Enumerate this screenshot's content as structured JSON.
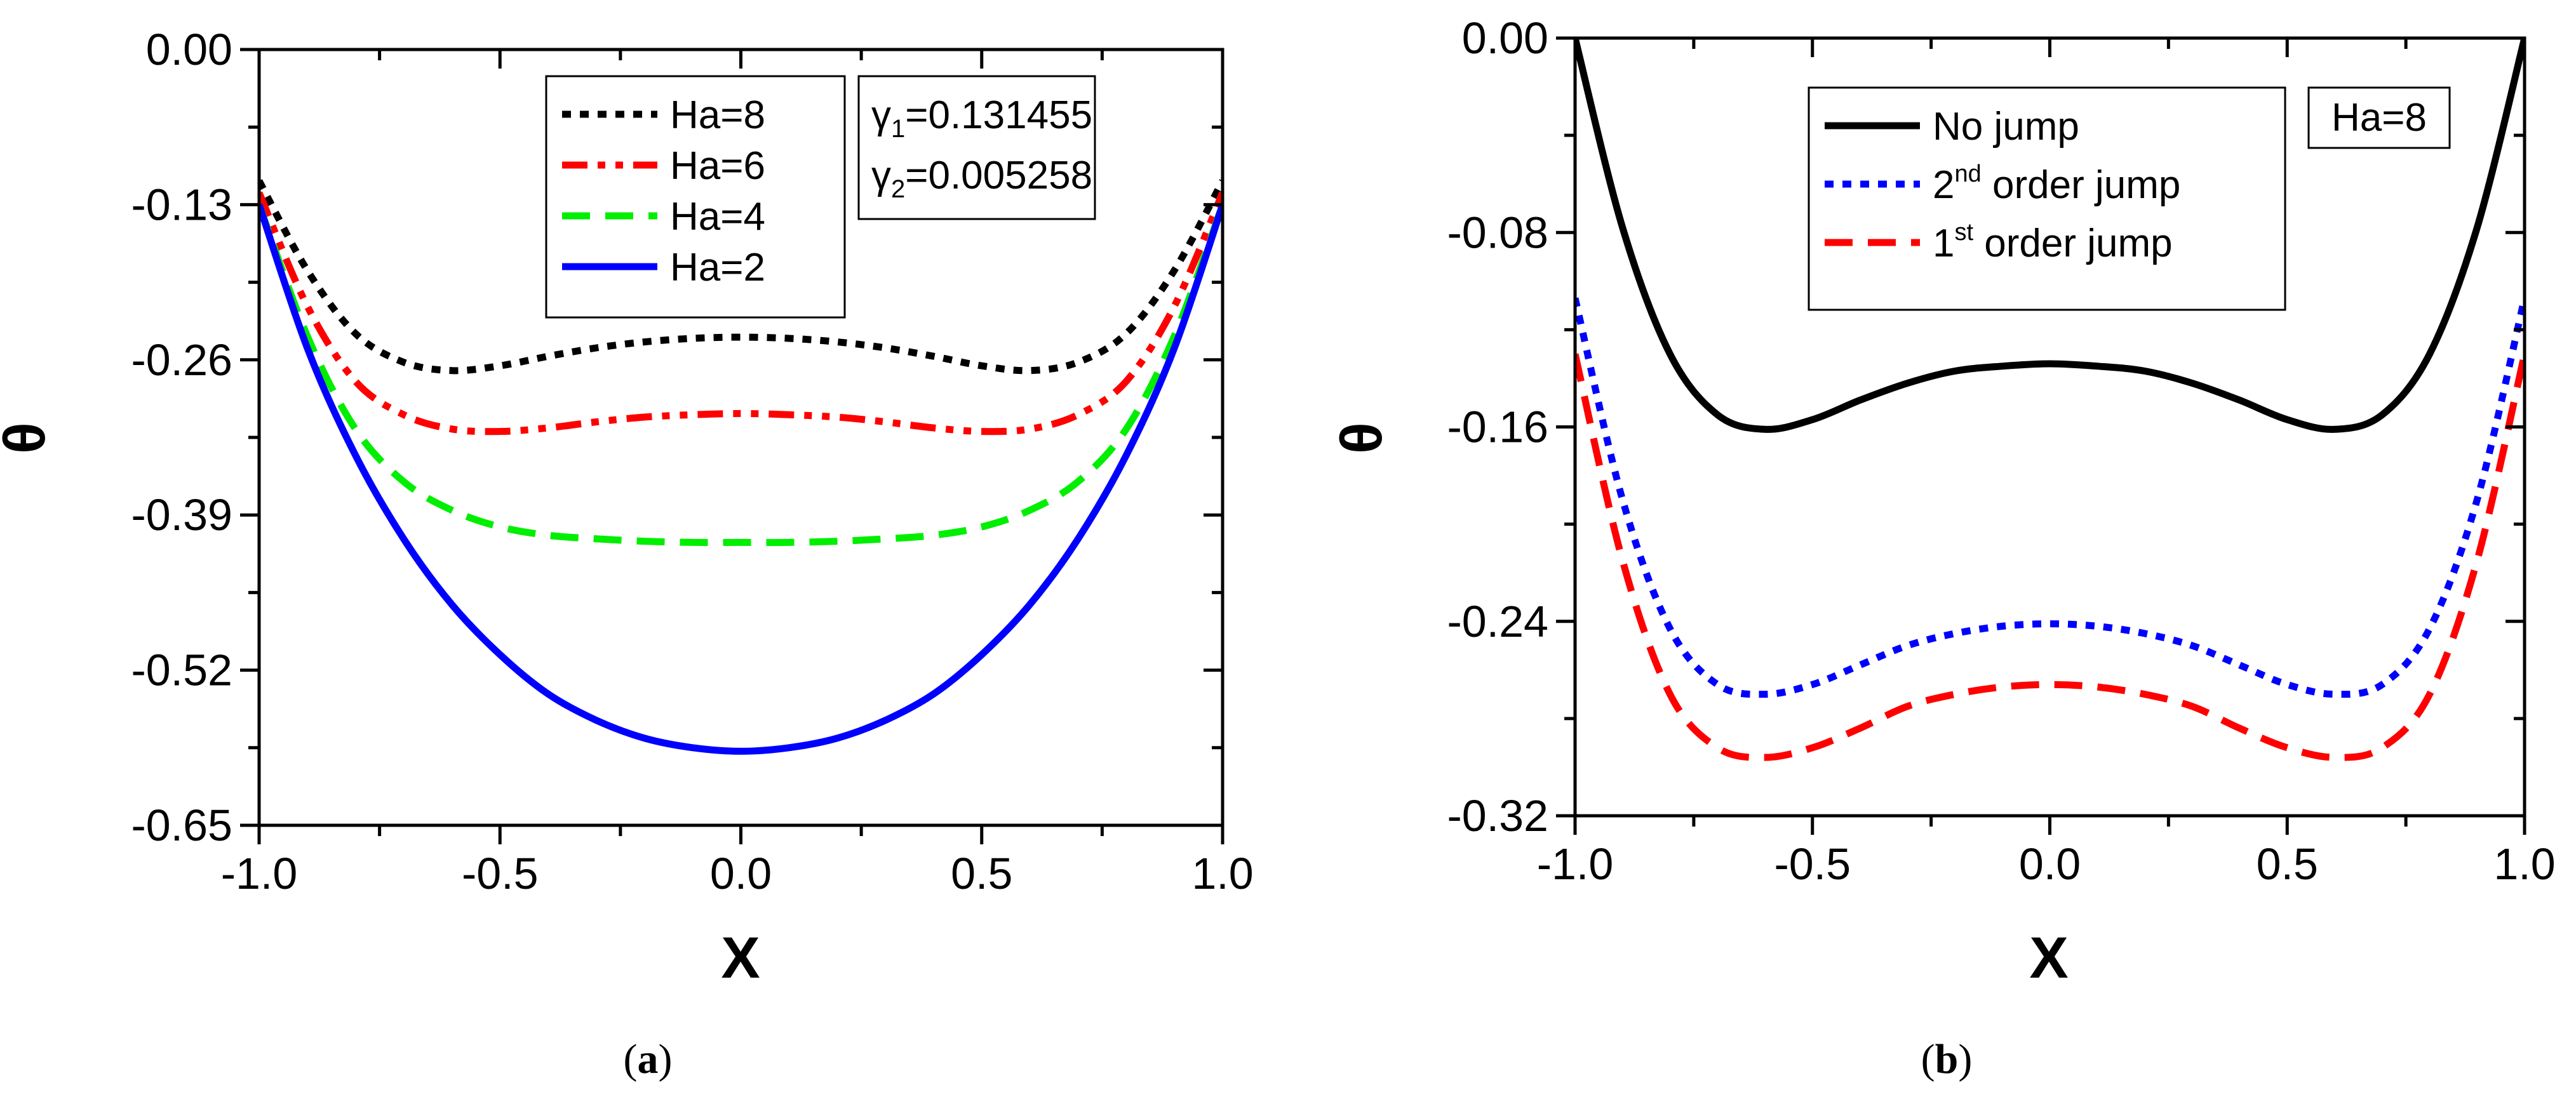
{
  "chart_data": [
    {
      "type": "line",
      "panel_label": "a",
      "xlabel": "X",
      "ylabel": "θ",
      "xlim": [
        -1.0,
        1.0
      ],
      "ylim": [
        -0.65,
        0.0
      ],
      "xticks": [
        -1.0,
        -0.5,
        0.0,
        0.5,
        1.0
      ],
      "xtick_labels": [
        "-1.0",
        "-0.5",
        "0.0",
        "0.5",
        "1.0"
      ],
      "yticks": [
        0.0,
        -0.13,
        -0.26,
        -0.39,
        -0.52,
        -0.65
      ],
      "ytick_labels": [
        "0.00",
        "-0.13",
        "-0.26",
        "-0.39",
        "-0.52",
        "-0.65"
      ],
      "legend_position": "top-center",
      "annotation": {
        "lines": [
          {
            "symbol": "γ",
            "sub": "1",
            "text": "=0.131455"
          },
          {
            "symbol": "γ",
            "sub": "2",
            "text": "=0.005258"
          }
        ]
      },
      "series": [
        {
          "name": "Ha=8",
          "color": "#000000",
          "dash": "dot",
          "x": [
            -1.0,
            -0.9,
            -0.8,
            -0.7,
            -0.6,
            -0.5,
            -0.4,
            -0.3,
            -0.2,
            -0.1,
            0.0,
            0.1,
            0.2,
            0.3,
            0.4,
            0.5,
            0.6,
            0.7,
            0.8,
            0.9,
            1.0
          ],
          "y": [
            -0.11,
            -0.185,
            -0.238,
            -0.262,
            -0.269,
            -0.265,
            -0.257,
            -0.25,
            -0.245,
            -0.242,
            -0.241,
            -0.242,
            -0.245,
            -0.25,
            -0.257,
            -0.265,
            -0.269,
            -0.262,
            -0.238,
            -0.185,
            -0.11
          ]
        },
        {
          "name": "Ha=6",
          "color": "#ff0000",
          "dash": "dashdotdot",
          "x": [
            -1.0,
            -0.9,
            -0.8,
            -0.7,
            -0.6,
            -0.5,
            -0.4,
            -0.3,
            -0.2,
            -0.1,
            0.0,
            0.1,
            0.2,
            0.3,
            0.4,
            0.5,
            0.6,
            0.7,
            0.8,
            0.9,
            1.0
          ],
          "y": [
            -0.12,
            -0.215,
            -0.278,
            -0.306,
            -0.318,
            -0.32,
            -0.317,
            -0.312,
            -0.308,
            -0.306,
            -0.305,
            -0.306,
            -0.308,
            -0.312,
            -0.317,
            -0.32,
            -0.318,
            -0.306,
            -0.278,
            -0.215,
            -0.12
          ]
        },
        {
          "name": "Ha=4",
          "color": "#00ee00",
          "dash": "dash",
          "x": [
            -1.0,
            -0.9,
            -0.8,
            -0.7,
            -0.6,
            -0.5,
            -0.4,
            -0.3,
            -0.2,
            -0.1,
            0.0,
            0.1,
            0.2,
            0.3,
            0.4,
            0.5,
            0.6,
            0.7,
            0.8,
            0.9,
            1.0
          ],
          "y": [
            -0.13,
            -0.24,
            -0.318,
            -0.362,
            -0.386,
            -0.4,
            -0.407,
            -0.41,
            -0.412,
            -0.413,
            -0.413,
            -0.413,
            -0.412,
            -0.41,
            -0.407,
            -0.4,
            -0.386,
            -0.362,
            -0.318,
            -0.24,
            -0.13
          ]
        },
        {
          "name": "Ha=2",
          "color": "#0000ff",
          "dash": "solid",
          "x": [
            -1.0,
            -0.9,
            -0.8,
            -0.7,
            -0.6,
            -0.5,
            -0.4,
            -0.3,
            -0.2,
            -0.1,
            0.0,
            0.1,
            0.2,
            0.3,
            0.4,
            0.5,
            0.6,
            0.7,
            0.8,
            0.9,
            1.0
          ],
          "y": [
            -0.13,
            -0.25,
            -0.34,
            -0.41,
            -0.465,
            -0.507,
            -0.54,
            -0.562,
            -0.577,
            -0.585,
            -0.588,
            -0.585,
            -0.577,
            -0.562,
            -0.54,
            -0.507,
            -0.465,
            -0.41,
            -0.34,
            -0.25,
            -0.13
          ]
        }
      ]
    },
    {
      "type": "line",
      "panel_label": "b",
      "xlabel": "X",
      "ylabel": "θ",
      "xlim": [
        -1.0,
        1.0
      ],
      "ylim": [
        -0.32,
        0.0
      ],
      "xticks": [
        -1.0,
        -0.5,
        0.0,
        0.5,
        1.0
      ],
      "xtick_labels": [
        "-1.0",
        "-0.5",
        "0.0",
        "0.5",
        "1.0"
      ],
      "yticks": [
        0.0,
        -0.08,
        -0.16,
        -0.24,
        -0.32
      ],
      "ytick_labels": [
        "0.00",
        "-0.08",
        "-0.16",
        "-0.24",
        "-0.32"
      ],
      "legend_position": "top-center",
      "annotation": {
        "text": "Ha=8"
      },
      "series": [
        {
          "name": "No jump",
          "color": "#000000",
          "dash": "solid",
          "x": [
            -1.0,
            -0.9,
            -0.8,
            -0.7,
            -0.6,
            -0.5,
            -0.4,
            -0.3,
            -0.2,
            -0.1,
            0.0,
            0.1,
            0.2,
            0.3,
            0.4,
            0.5,
            0.6,
            0.7,
            0.8,
            0.9,
            1.0
          ],
          "y": [
            0.0,
            -0.078,
            -0.13,
            -0.155,
            -0.161,
            -0.157,
            -0.149,
            -0.142,
            -0.137,
            -0.135,
            -0.134,
            -0.135,
            -0.137,
            -0.142,
            -0.149,
            -0.157,
            -0.161,
            -0.155,
            -0.13,
            -0.078,
            0.0
          ]
        },
        {
          "name": "2nd order jump",
          "name_parts": [
            "2",
            "nd",
            " order jump"
          ],
          "color": "#0000ff",
          "dash": "dot",
          "x": [
            -1.0,
            -0.9,
            -0.8,
            -0.7,
            -0.6,
            -0.5,
            -0.4,
            -0.3,
            -0.2,
            -0.1,
            0.0,
            0.1,
            0.2,
            0.3,
            0.4,
            0.5,
            0.6,
            0.7,
            0.8,
            0.9,
            1.0
          ],
          "y": [
            -0.107,
            -0.19,
            -0.243,
            -0.266,
            -0.27,
            -0.266,
            -0.258,
            -0.25,
            -0.245,
            -0.242,
            -0.241,
            -0.242,
            -0.245,
            -0.25,
            -0.258,
            -0.266,
            -0.27,
            -0.266,
            -0.243,
            -0.19,
            -0.107
          ]
        },
        {
          "name": "1st order jump",
          "name_parts": [
            "1",
            "st",
            " order jump"
          ],
          "color": "#ff0000",
          "dash": "dash",
          "x": [
            -1.0,
            -0.9,
            -0.8,
            -0.7,
            -0.6,
            -0.5,
            -0.4,
            -0.3,
            -0.2,
            -0.1,
            0.0,
            0.1,
            0.2,
            0.3,
            0.4,
            0.5,
            0.6,
            0.7,
            0.8,
            0.9,
            1.0
          ],
          "y": [
            -0.13,
            -0.215,
            -0.27,
            -0.292,
            -0.296,
            -0.292,
            -0.284,
            -0.275,
            -0.27,
            -0.267,
            -0.266,
            -0.267,
            -0.27,
            -0.275,
            -0.284,
            -0.292,
            -0.296,
            -0.292,
            -0.27,
            -0.215,
            -0.13
          ]
        }
      ]
    }
  ]
}
